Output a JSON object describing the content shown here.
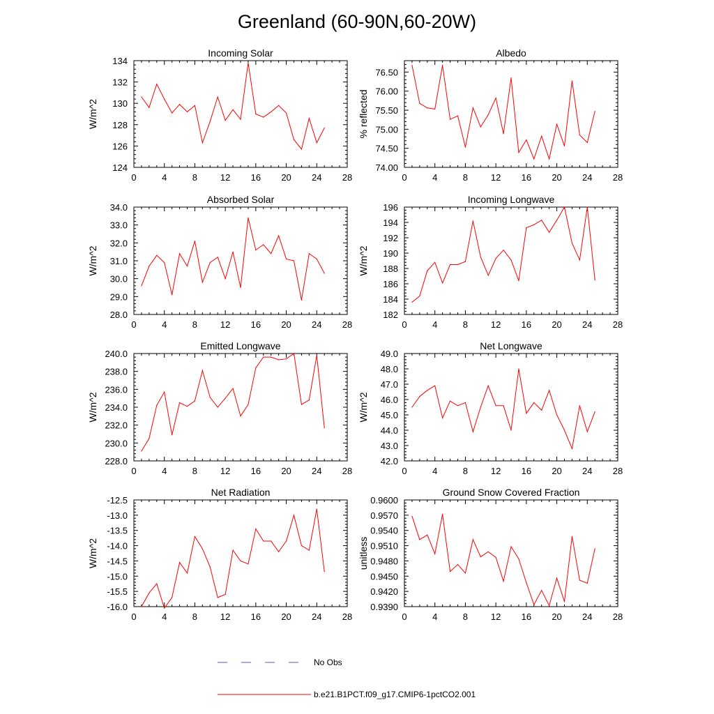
{
  "title": "Greenland (60-90N,60-20W)",
  "legend": [
    {
      "label": "No Obs",
      "color": "#5a5ab4",
      "dash": "dashed"
    },
    {
      "label": "b.e21.B1PCT.f09_g17.CMIP6-1pctCO2.001",
      "color": "#ff0000",
      "dash": "solid"
    }
  ],
  "chart_data": [
    {
      "type": "line",
      "title": "Incoming Solar",
      "xlabel": "",
      "ylabel": "W/m^2",
      "xlim": [
        0,
        28
      ],
      "xticks": [
        "0",
        "4",
        "8",
        "12",
        "16",
        "20",
        "24",
        "28"
      ],
      "ylim": [
        124,
        134
      ],
      "yticks": [
        "124",
        "126",
        "128",
        "130",
        "132",
        "134"
      ],
      "x": [
        1,
        2,
        3,
        4,
        5,
        6,
        7,
        8,
        9,
        10,
        11,
        12,
        13,
        14,
        15,
        16,
        17,
        18,
        19,
        20,
        21,
        22,
        23,
        24,
        25
      ],
      "series": [
        {
          "name": "b.e21.B1PCT.f09_g17.CMIP6-1pctCO2.001",
          "color": "#ff0000",
          "values": [
            130.6,
            129.6,
            131.8,
            130.4,
            129.1,
            129.9,
            129.2,
            129.8,
            126.3,
            128.3,
            130.6,
            128.4,
            129.4,
            128.5,
            133.8,
            129.0,
            128.7,
            129.2,
            129.8,
            129.1,
            126.6,
            125.7,
            128.6,
            126.3,
            127.7
          ]
        }
      ]
    },
    {
      "type": "line",
      "title": "Albedo",
      "xlabel": "",
      "ylabel": "% reflected",
      "xlim": [
        0,
        28
      ],
      "xticks": [
        "0",
        "4",
        "8",
        "12",
        "16",
        "20",
        "24",
        "28"
      ],
      "ylim": [
        74.0,
        76.8
      ],
      "yticks": [
        "74.00",
        "74.50",
        "75.00",
        "75.50",
        "76.00",
        "76.50"
      ],
      "x": [
        1,
        2,
        3,
        4,
        5,
        6,
        7,
        8,
        9,
        10,
        11,
        12,
        13,
        14,
        15,
        16,
        17,
        18,
        19,
        20,
        21,
        22,
        23,
        24,
        25
      ],
      "series": [
        {
          "name": "b.e21.B1PCT.f09_g17.CMIP6-1pctCO2.001",
          "color": "#ff0000",
          "values": [
            76.68,
            75.68,
            75.56,
            75.53,
            76.68,
            75.26,
            75.35,
            74.53,
            75.56,
            75.06,
            75.38,
            75.82,
            74.88,
            76.35,
            74.39,
            74.72,
            74.22,
            74.82,
            74.22,
            75.13,
            74.56,
            76.27,
            74.85,
            74.65,
            75.47
          ]
        }
      ]
    },
    {
      "type": "line",
      "title": "Absorbed Solar",
      "xlabel": "",
      "ylabel": "W/m^2",
      "xlim": [
        0,
        28
      ],
      "xticks": [
        "0",
        "4",
        "8",
        "12",
        "16",
        "20",
        "24",
        "28"
      ],
      "ylim": [
        28.0,
        34.0
      ],
      "yticks": [
        "28.0",
        "29.0",
        "30.0",
        "31.0",
        "32.0",
        "33.0",
        "34.0"
      ],
      "x": [
        1,
        2,
        3,
        4,
        5,
        6,
        7,
        8,
        9,
        10,
        11,
        12,
        13,
        14,
        15,
        16,
        17,
        18,
        19,
        20,
        21,
        22,
        23,
        24,
        25
      ],
      "series": [
        {
          "name": "b.e21.B1PCT.f09_g17.CMIP6-1pctCO2.001",
          "color": "#ff0000",
          "values": [
            29.6,
            30.7,
            31.3,
            30.9,
            29.1,
            31.4,
            30.7,
            32.1,
            29.8,
            30.9,
            31.2,
            30.0,
            31.5,
            29.5,
            33.4,
            31.6,
            31.9,
            31.4,
            32.4,
            31.1,
            31.0,
            28.8,
            31.4,
            31.1,
            30.3
          ]
        }
      ]
    },
    {
      "type": "line",
      "title": "Incoming Longwave",
      "xlabel": "",
      "ylabel": "W/m^2",
      "xlim": [
        0,
        28
      ],
      "xticks": [
        "0",
        "4",
        "8",
        "12",
        "16",
        "20",
        "24",
        "28"
      ],
      "ylim": [
        182,
        196
      ],
      "yticks": [
        "182",
        "184",
        "186",
        "188",
        "190",
        "192",
        "194",
        "196"
      ],
      "x": [
        1,
        2,
        3,
        4,
        5,
        6,
        7,
        8,
        9,
        10,
        11,
        12,
        13,
        14,
        15,
        16,
        17,
        18,
        19,
        20,
        21,
        22,
        23,
        24,
        25
      ],
      "series": [
        {
          "name": "b.e21.B1PCT.f09_g17.CMIP6-1pctCO2.001",
          "color": "#ff0000",
          "values": [
            183.6,
            184.4,
            187.7,
            188.8,
            186.1,
            188.5,
            188.5,
            188.9,
            194.2,
            189.5,
            187.1,
            189.3,
            190.4,
            189.1,
            186.4,
            193.3,
            193.7,
            194.3,
            192.7,
            194.3,
            196.0,
            191.3,
            189.1,
            196.0,
            186.5
          ]
        }
      ]
    },
    {
      "type": "line",
      "title": "Emitted Longwave",
      "xlabel": "",
      "ylabel": "W/m^2",
      "xlim": [
        0,
        28
      ],
      "xticks": [
        "0",
        "4",
        "8",
        "12",
        "16",
        "20",
        "24",
        "28"
      ],
      "ylim": [
        228.0,
        240.0
      ],
      "yticks": [
        "228.0",
        "230.0",
        "232.0",
        "234.0",
        "236.0",
        "238.0",
        "240.0"
      ],
      "x": [
        1,
        2,
        3,
        4,
        5,
        6,
        7,
        8,
        9,
        10,
        11,
        12,
        13,
        14,
        15,
        16,
        17,
        18,
        19,
        20,
        21,
        22,
        23,
        24,
        25
      ],
      "series": [
        {
          "name": "b.e21.B1PCT.f09_g17.CMIP6-1pctCO2.001",
          "color": "#ff0000",
          "values": [
            229.1,
            230.5,
            234.2,
            235.7,
            230.9,
            234.5,
            234.1,
            234.7,
            238.1,
            235.1,
            234.0,
            235.0,
            236.1,
            233.0,
            234.3,
            238.4,
            239.6,
            239.6,
            239.3,
            239.4,
            240.0,
            234.3,
            234.8,
            239.8,
            231.7
          ]
        }
      ]
    },
    {
      "type": "line",
      "title": "Net Longwave",
      "xlabel": "",
      "ylabel": "W/m^2",
      "xlim": [
        0,
        28
      ],
      "xticks": [
        "0",
        "4",
        "8",
        "12",
        "16",
        "20",
        "24",
        "28"
      ],
      "ylim": [
        42.0,
        49.0
      ],
      "yticks": [
        "42.0",
        "43.0",
        "44.0",
        "45.0",
        "46.0",
        "47.0",
        "48.0",
        "49.0"
      ],
      "x": [
        1,
        2,
        3,
        4,
        5,
        6,
        7,
        8,
        9,
        10,
        11,
        12,
        13,
        14,
        15,
        16,
        17,
        18,
        19,
        20,
        21,
        22,
        23,
        24,
        25
      ],
      "series": [
        {
          "name": "b.e21.B1PCT.f09_g17.CMIP6-1pctCO2.001",
          "color": "#ff0000",
          "values": [
            45.5,
            46.2,
            46.6,
            46.9,
            44.8,
            45.9,
            45.6,
            45.8,
            43.9,
            45.5,
            46.9,
            45.6,
            45.6,
            44.0,
            48.0,
            45.1,
            45.8,
            45.3,
            46.6,
            45.0,
            44.0,
            42.8,
            45.6,
            43.9,
            45.2
          ]
        }
      ]
    },
    {
      "type": "line",
      "title": "Net Radiation",
      "xlabel": "",
      "ylabel": "W/m^2",
      "xlim": [
        0,
        28
      ],
      "xticks": [
        "0",
        "4",
        "8",
        "12",
        "16",
        "20",
        "24",
        "28"
      ],
      "ylim": [
        -16.0,
        -12.5
      ],
      "yticks": [
        "-16.0",
        "-15.5",
        "-15.0",
        "-14.5",
        "-14.0",
        "-13.5",
        "-13.0",
        "-12.5"
      ],
      "x": [
        1,
        2,
        3,
        4,
        5,
        6,
        7,
        8,
        9,
        10,
        11,
        12,
        13,
        14,
        15,
        16,
        17,
        18,
        19,
        20,
        21,
        22,
        23,
        24,
        25
      ],
      "series": [
        {
          "name": "b.e21.B1PCT.f09_g17.CMIP6-1pctCO2.001",
          "color": "#ff0000",
          "values": [
            -16.0,
            -15.55,
            -15.25,
            -16.05,
            -15.7,
            -14.55,
            -14.9,
            -13.7,
            -14.1,
            -14.7,
            -15.7,
            -15.6,
            -14.15,
            -14.5,
            -14.6,
            -13.45,
            -13.85,
            -13.85,
            -14.2,
            -13.85,
            -13.0,
            -14.0,
            -14.15,
            -12.8,
            -14.85
          ]
        }
      ]
    },
    {
      "type": "line",
      "title": "Ground Snow Covered Fraction",
      "xlabel": "",
      "ylabel": "unitless",
      "xlim": [
        0,
        28
      ],
      "xticks": [
        "0",
        "4",
        "8",
        "12",
        "16",
        "20",
        "24",
        "28"
      ],
      "ylim": [
        0.939,
        0.96
      ],
      "yticks": [
        "0.9390",
        "0.9420",
        "0.9450",
        "0.9480",
        "0.9510",
        "0.9540",
        "0.9570",
        "0.9600"
      ],
      "x": [
        1,
        2,
        3,
        4,
        5,
        6,
        7,
        8,
        9,
        10,
        11,
        12,
        13,
        14,
        15,
        16,
        17,
        18,
        19,
        20,
        21,
        22,
        23,
        24,
        25
      ],
      "series": [
        {
          "name": "b.e21.B1PCT.f09_g17.CMIP6-1pctCO2.001",
          "color": "#ff0000",
          "values": [
            0.9568,
            0.9522,
            0.9531,
            0.9494,
            0.9572,
            0.9459,
            0.9473,
            0.9456,
            0.9522,
            0.9488,
            0.9498,
            0.9487,
            0.944,
            0.9508,
            0.9484,
            0.9437,
            0.9394,
            0.9422,
            0.9392,
            0.9446,
            0.94,
            0.9528,
            0.9442,
            0.9436,
            0.9504
          ]
        }
      ]
    }
  ]
}
